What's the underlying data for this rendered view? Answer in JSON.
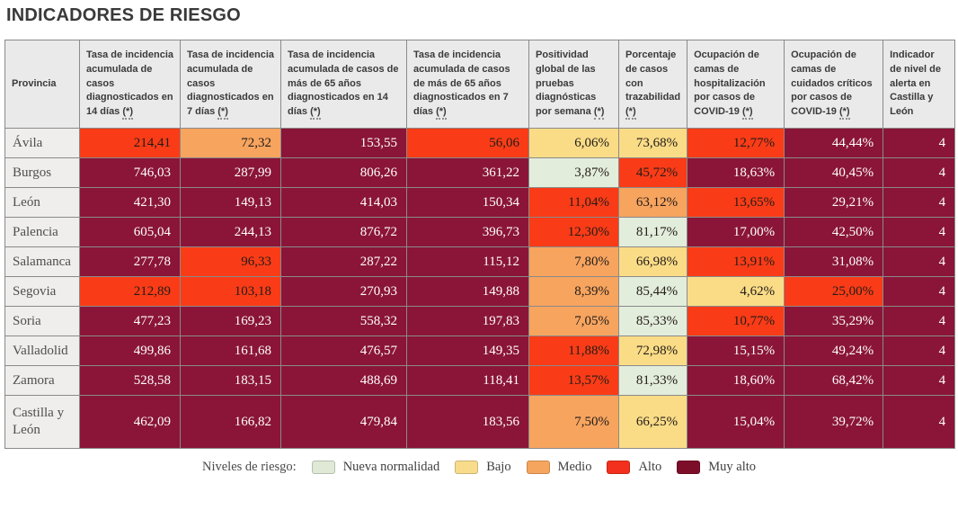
{
  "chart_data": {
    "type": "table",
    "title": "INDICADORES DE RIESGO",
    "columns": [
      {
        "label": "Provincia",
        "suffix": ""
      },
      {
        "label": "Tasa de incidencia acumulada de casos diagnosticados en 14 días",
        "suffix": "(*)"
      },
      {
        "label": "Tasa de incidencia acumulada de casos diagnosticados en 7 días",
        "suffix": "(*)"
      },
      {
        "label": "Tasa de incidencia acumulada de casos de más de 65 años diagnosticados en 14 días",
        "suffix": "(*)"
      },
      {
        "label": "Tasa de incidencia acumulada de casos de más de 65 años diagnosticados en 7 días",
        "suffix": "(*)"
      },
      {
        "label": "Positividad global de las pruebas diagnósticas por semana",
        "suffix": "(*)"
      },
      {
        "label": "Porcentaje de casos con trazabilidad",
        "suffix": "(*)"
      },
      {
        "label": "Ocupación de camas de hospitalización por casos de COVID-19",
        "suffix": "(*)"
      },
      {
        "label": "Ocupación de camas de cuidados críticos por casos de COVID-19",
        "suffix": "(*)"
      },
      {
        "label": "Indicador de nivel de alerta en Castilla y León",
        "suffix": ""
      }
    ],
    "rows": [
      {
        "provincia": "Ávila",
        "cells": [
          {
            "value": "214,41",
            "level": "alto"
          },
          {
            "value": "72,32",
            "level": "medio"
          },
          {
            "value": "153,55",
            "level": "muy_alto"
          },
          {
            "value": "56,06",
            "level": "alto"
          },
          {
            "value": "6,06%",
            "level": "bajo"
          },
          {
            "value": "73,68%",
            "level": "bajo"
          },
          {
            "value": "12,77%",
            "level": "alto"
          },
          {
            "value": "44,44%",
            "level": "muy_alto"
          },
          {
            "value": "4",
            "level": "muy_alto"
          }
        ]
      },
      {
        "provincia": "Burgos",
        "cells": [
          {
            "value": "746,03",
            "level": "muy_alto"
          },
          {
            "value": "287,99",
            "level": "muy_alto"
          },
          {
            "value": "806,26",
            "level": "muy_alto"
          },
          {
            "value": "361,22",
            "level": "muy_alto"
          },
          {
            "value": "3,87%",
            "level": "nueva"
          },
          {
            "value": "45,72%",
            "level": "alto"
          },
          {
            "value": "18,63%",
            "level": "muy_alto"
          },
          {
            "value": "40,45%",
            "level": "muy_alto"
          },
          {
            "value": "4",
            "level": "muy_alto"
          }
        ]
      },
      {
        "provincia": "León",
        "cells": [
          {
            "value": "421,30",
            "level": "muy_alto"
          },
          {
            "value": "149,13",
            "level": "muy_alto"
          },
          {
            "value": "414,03",
            "level": "muy_alto"
          },
          {
            "value": "150,34",
            "level": "muy_alto"
          },
          {
            "value": "11,04%",
            "level": "alto"
          },
          {
            "value": "63,12%",
            "level": "medio"
          },
          {
            "value": "13,65%",
            "level": "alto"
          },
          {
            "value": "29,21%",
            "level": "muy_alto"
          },
          {
            "value": "4",
            "level": "muy_alto"
          }
        ]
      },
      {
        "provincia": "Palencia",
        "cells": [
          {
            "value": "605,04",
            "level": "muy_alto"
          },
          {
            "value": "244,13",
            "level": "muy_alto"
          },
          {
            "value": "876,72",
            "level": "muy_alto"
          },
          {
            "value": "396,73",
            "level": "muy_alto"
          },
          {
            "value": "12,30%",
            "level": "alto"
          },
          {
            "value": "81,17%",
            "level": "nueva"
          },
          {
            "value": "17,00%",
            "level": "muy_alto"
          },
          {
            "value": "42,50%",
            "level": "muy_alto"
          },
          {
            "value": "4",
            "level": "muy_alto"
          }
        ]
      },
      {
        "provincia": "Salamanca",
        "cells": [
          {
            "value": "277,78",
            "level": "muy_alto"
          },
          {
            "value": "96,33",
            "level": "alto"
          },
          {
            "value": "287,22",
            "level": "muy_alto"
          },
          {
            "value": "115,12",
            "level": "muy_alto"
          },
          {
            "value": "7,80%",
            "level": "medio"
          },
          {
            "value": "66,98%",
            "level": "bajo"
          },
          {
            "value": "13,91%",
            "level": "alto"
          },
          {
            "value": "31,08%",
            "level": "muy_alto"
          },
          {
            "value": "4",
            "level": "muy_alto"
          }
        ]
      },
      {
        "provincia": "Segovia",
        "cells": [
          {
            "value": "212,89",
            "level": "alto"
          },
          {
            "value": "103,18",
            "level": "alto"
          },
          {
            "value": "270,93",
            "level": "muy_alto"
          },
          {
            "value": "149,88",
            "level": "muy_alto"
          },
          {
            "value": "8,39%",
            "level": "medio"
          },
          {
            "value": "85,44%",
            "level": "nueva"
          },
          {
            "value": "4,62%",
            "level": "bajo"
          },
          {
            "value": "25,00%",
            "level": "alto"
          },
          {
            "value": "4",
            "level": "muy_alto"
          }
        ]
      },
      {
        "provincia": "Soria",
        "cells": [
          {
            "value": "477,23",
            "level": "muy_alto"
          },
          {
            "value": "169,23",
            "level": "muy_alto"
          },
          {
            "value": "558,32",
            "level": "muy_alto"
          },
          {
            "value": "197,83",
            "level": "muy_alto"
          },
          {
            "value": "7,05%",
            "level": "medio"
          },
          {
            "value": "85,33%",
            "level": "nueva"
          },
          {
            "value": "10,77%",
            "level": "alto"
          },
          {
            "value": "35,29%",
            "level": "muy_alto"
          },
          {
            "value": "4",
            "level": "muy_alto"
          }
        ]
      },
      {
        "provincia": "Valladolid",
        "cells": [
          {
            "value": "499,86",
            "level": "muy_alto"
          },
          {
            "value": "161,68",
            "level": "muy_alto"
          },
          {
            "value": "476,57",
            "level": "muy_alto"
          },
          {
            "value": "149,35",
            "level": "muy_alto"
          },
          {
            "value": "11,88%",
            "level": "alto"
          },
          {
            "value": "72,98%",
            "level": "bajo"
          },
          {
            "value": "15,15%",
            "level": "muy_alto"
          },
          {
            "value": "49,24%",
            "level": "muy_alto"
          },
          {
            "value": "4",
            "level": "muy_alto"
          }
        ]
      },
      {
        "provincia": "Zamora",
        "cells": [
          {
            "value": "528,58",
            "level": "muy_alto"
          },
          {
            "value": "183,15",
            "level": "muy_alto"
          },
          {
            "value": "488,69",
            "level": "muy_alto"
          },
          {
            "value": "118,41",
            "level": "muy_alto"
          },
          {
            "value": "13,57%",
            "level": "alto"
          },
          {
            "value": "81,33%",
            "level": "nueva"
          },
          {
            "value": "18,60%",
            "level": "muy_alto"
          },
          {
            "value": "68,42%",
            "level": "muy_alto"
          },
          {
            "value": "4",
            "level": "muy_alto"
          }
        ]
      },
      {
        "provincia": "Castilla y León",
        "cells": [
          {
            "value": "462,09",
            "level": "muy_alto"
          },
          {
            "value": "166,82",
            "level": "muy_alto"
          },
          {
            "value": "479,84",
            "level": "muy_alto"
          },
          {
            "value": "183,56",
            "level": "muy_alto"
          },
          {
            "value": "7,50%",
            "level": "medio"
          },
          {
            "value": "66,25%",
            "level": "bajo"
          },
          {
            "value": "15,04%",
            "level": "muy_alto"
          },
          {
            "value": "39,72%",
            "level": "muy_alto"
          },
          {
            "value": "4",
            "level": "muy_alto"
          }
        ]
      }
    ],
    "legend": {
      "label": "Niveles de riesgo:",
      "items": [
        {
          "label": "Nueva normalidad",
          "level": "nueva"
        },
        {
          "label": "Bajo",
          "level": "bajo"
        },
        {
          "label": "Medio",
          "level": "medio"
        },
        {
          "label": "Alto",
          "level": "alto"
        },
        {
          "label": "Muy alto",
          "level": "muy_alto"
        }
      ]
    }
  },
  "colors": {
    "nueva": "#E3EDDC",
    "bajo": "#FADC87",
    "medio": "#F7A45F",
    "alto": "#F93C17",
    "muy_alto": "#8A1538",
    "legend_nueva": "#DFE9D6",
    "legend_bajo": "#F9DC8B",
    "legend_medio": "#F6A55F",
    "legend_alto": "#F3301D",
    "legend_muy_alto": "#7D0E29",
    "dark_text": "#221C18",
    "light_text": "#FFFFFF"
  }
}
